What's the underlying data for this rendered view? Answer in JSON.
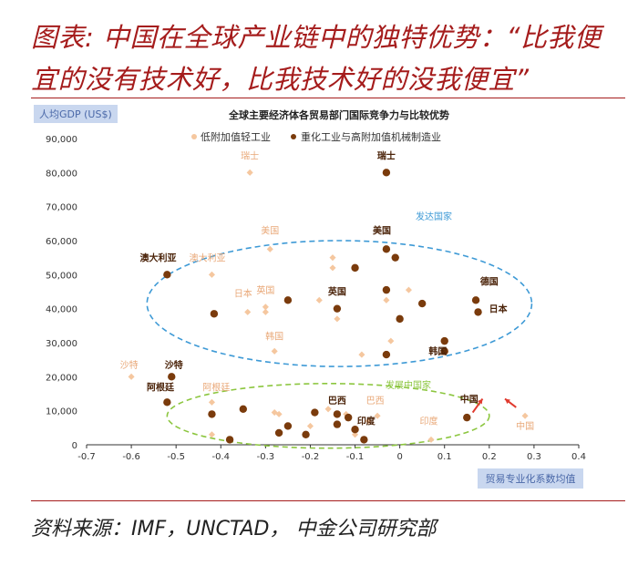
{
  "figure": {
    "title_line1": "图表: 中国在全球产业链中的独特优势：“比我便",
    "title_line2": "宜的没有技术好，比我技术好的没我便宜”",
    "source": "资料来源：IMF，UNCTAD，  中金公司研究部"
  },
  "colors": {
    "light": "#f5c79f",
    "dark": "#7a3b0c",
    "developed_ellipse": "#3e9ad6",
    "developing_ellipse": "#8cc63f",
    "arrow": "#e03a2e",
    "frame": "#a51c1c"
  },
  "chart_data": {
    "type": "scatter",
    "title": "全球主要经济体各贸易部门国际竞争力与比较优势",
    "xlabel": "贸易专业化系数均值",
    "ylabel": "人均GDP (US$)",
    "xlim": [
      -0.7,
      0.4
    ],
    "ylim": [
      0,
      90000
    ],
    "x_ticks": [
      "-0.7",
      "-0.6",
      "-0.5",
      "-0.4",
      "-0.3",
      "-0.2",
      "-0.1",
      "0",
      "0.1",
      "0.2",
      "0.3",
      "0.4"
    ],
    "y_ticks": [
      "90,000",
      "80,000",
      "70,000",
      "60,000",
      "50,000",
      "40,000",
      "30,000",
      "20,000",
      "10,000",
      "0"
    ],
    "grid": false,
    "legend": "top",
    "series": [
      {
        "name": "低附加值轻工业",
        "points": [
          {
            "x": -0.335,
            "y": 80000
          },
          {
            "x": -0.29,
            "y": 57500
          },
          {
            "x": -0.42,
            "y": 50000
          },
          {
            "x": -0.34,
            "y": 39000
          },
          {
            "x": -0.3,
            "y": 39000
          },
          {
            "x": -0.3,
            "y": 40500
          },
          {
            "x": -0.18,
            "y": 42500
          },
          {
            "x": -0.15,
            "y": 55000
          },
          {
            "x": -0.15,
            "y": 52000
          },
          {
            "x": -0.14,
            "y": 37000
          },
          {
            "x": -0.14,
            "y": 40000
          },
          {
            "x": -0.085,
            "y": 26500
          },
          {
            "x": -0.02,
            "y": 30500
          },
          {
            "x": -0.03,
            "y": 42500
          },
          {
            "x": 0.02,
            "y": 45500
          },
          {
            "x": -0.28,
            "y": 27500
          },
          {
            "x": -0.6,
            "y": 20000
          },
          {
            "x": -0.42,
            "y": 12500
          },
          {
            "x": -0.28,
            "y": 9500
          },
          {
            "x": -0.27,
            "y": 9000
          },
          {
            "x": -0.16,
            "y": 10500
          },
          {
            "x": -0.12,
            "y": 9000
          },
          {
            "x": -0.1,
            "y": 3000
          },
          {
            "x": -0.07,
            "y": 7000
          },
          {
            "x": -0.05,
            "y": 8500
          },
          {
            "x": -0.2,
            "y": 5500
          },
          {
            "x": -0.42,
            "y": 3000
          },
          {
            "x": 0.07,
            "y": 1500
          },
          {
            "x": 0.28,
            "y": 8500
          }
        ]
      },
      {
        "name": "重化工业与高附加值机械制造业",
        "points": [
          {
            "x": -0.03,
            "y": 80000
          },
          {
            "x": -0.03,
            "y": 57500
          },
          {
            "x": -0.01,
            "y": 55000
          },
          {
            "x": -0.1,
            "y": 52000
          },
          {
            "x": -0.52,
            "y": 50000
          },
          {
            "x": -0.415,
            "y": 38500
          },
          {
            "x": -0.25,
            "y": 42500
          },
          {
            "x": -0.14,
            "y": 40000
          },
          {
            "x": -0.03,
            "y": 45500
          },
          {
            "x": 0.0,
            "y": 37000
          },
          {
            "x": 0.05,
            "y": 41500
          },
          {
            "x": 0.17,
            "y": 42500
          },
          {
            "x": 0.175,
            "y": 39000
          },
          {
            "x": 0.1,
            "y": 30500
          },
          {
            "x": 0.1,
            "y": 27500
          },
          {
            "x": -0.03,
            "y": 26500
          },
          {
            "x": -0.51,
            "y": 20000
          },
          {
            "x": -0.52,
            "y": 12500
          },
          {
            "x": -0.42,
            "y": 9000
          },
          {
            "x": -0.35,
            "y": 10500
          },
          {
            "x": -0.27,
            "y": 3500
          },
          {
            "x": -0.25,
            "y": 5500
          },
          {
            "x": -0.21,
            "y": 3000
          },
          {
            "x": -0.19,
            "y": 9500
          },
          {
            "x": -0.14,
            "y": 9000
          },
          {
            "x": -0.14,
            "y": 6000
          },
          {
            "x": -0.115,
            "y": 8000
          },
          {
            "x": -0.08,
            "y": 1500
          },
          {
            "x": -0.1,
            "y": 4500
          },
          {
            "x": -0.38,
            "y": 1500
          },
          {
            "x": 0.15,
            "y": 8000
          }
        ]
      }
    ],
    "annotations": [
      {
        "text": "瑞士",
        "x": -0.335,
        "y": 84000,
        "tone": "light"
      },
      {
        "text": "瑞士",
        "x": -0.03,
        "y": 84000,
        "tone": "dark"
      },
      {
        "text": "美国",
        "x": -0.29,
        "y": 62000,
        "tone": "light"
      },
      {
        "text": "美国",
        "x": -0.04,
        "y": 62000,
        "tone": "dark"
      },
      {
        "text": "澳大利亚",
        "x": -0.43,
        "y": 54000,
        "tone": "light"
      },
      {
        "text": "澳大利亚",
        "x": -0.54,
        "y": 54000,
        "tone": "dark"
      },
      {
        "text": "日本",
        "x": -0.35,
        "y": 43500,
        "tone": "light"
      },
      {
        "text": "英国",
        "x": -0.3,
        "y": 44500,
        "tone": "light"
      },
      {
        "text": "英国",
        "x": -0.14,
        "y": 44000,
        "tone": "dark"
      },
      {
        "text": "德国",
        "x": 0.2,
        "y": 47000,
        "tone": "dark"
      },
      {
        "text": "日本",
        "x": 0.22,
        "y": 39000,
        "tone": "dark"
      },
      {
        "text": "韩国",
        "x": -0.28,
        "y": 31000,
        "tone": "light"
      },
      {
        "text": "韩国",
        "x": 0.085,
        "y": 26500,
        "tone": "dark"
      },
      {
        "text": "沙特",
        "x": -0.605,
        "y": 22500,
        "tone": "light"
      },
      {
        "text": "沙特",
        "x": -0.505,
        "y": 22500,
        "tone": "dark"
      },
      {
        "text": "阿根廷",
        "x": -0.41,
        "y": 16000,
        "tone": "light"
      },
      {
        "text": "阿根廷",
        "x": -0.535,
        "y": 16000,
        "tone": "dark"
      },
      {
        "text": "巴西",
        "x": -0.14,
        "y": 12000,
        "tone": "dark"
      },
      {
        "text": "巴西",
        "x": -0.055,
        "y": 12000,
        "tone": "light"
      },
      {
        "text": "印度",
        "x": -0.075,
        "y": 6000,
        "tone": "dark"
      },
      {
        "text": "印度",
        "x": 0.065,
        "y": 6000,
        "tone": "light"
      },
      {
        "text": "中国",
        "x": 0.155,
        "y": 12500,
        "tone": "dark"
      },
      {
        "text": "中国",
        "x": 0.28,
        "y": 4500,
        "tone": "light"
      }
    ],
    "groups": [
      {
        "label": "发达国家",
        "cx": -0.135,
        "cy": 41500,
        "rx": 0.43,
        "ry": 18500,
        "tone": "blue"
      },
      {
        "label": "发展中国家",
        "cx": -0.16,
        "cy": 8500,
        "rx": 0.36,
        "ry": 9500,
        "tone": "green"
      }
    ],
    "arrows": [
      {
        "from": [
          0.163,
          9500
        ],
        "to": [
          0.185,
          13500
        ]
      },
      {
        "from": [
          0.26,
          11000
        ],
        "to": [
          0.235,
          13500
        ]
      }
    ]
  }
}
